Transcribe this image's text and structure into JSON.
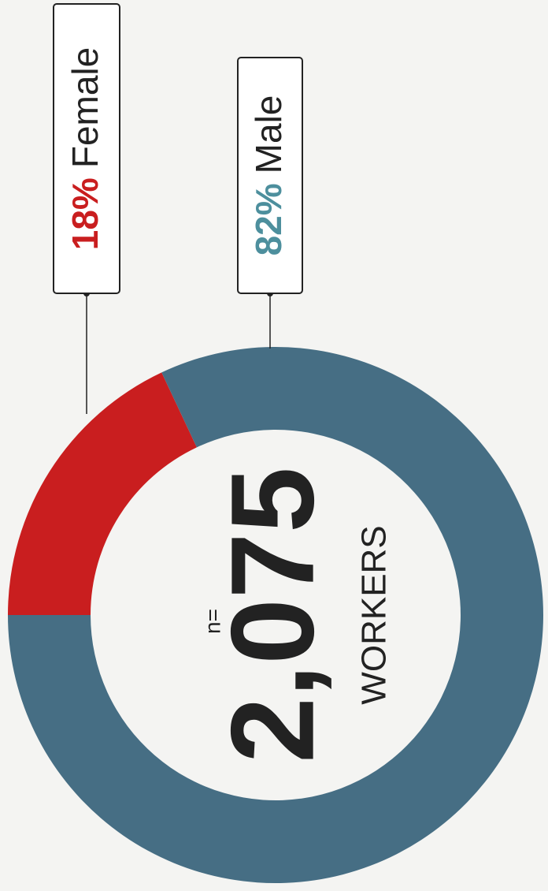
{
  "chart_data": {
    "type": "pie",
    "donut": true,
    "categories": [
      "Female",
      "Male"
    ],
    "values": [
      18,
      82
    ],
    "value_labels": [
      "18%",
      "82%"
    ],
    "colors": [
      "#c91e1f",
      "#466e84"
    ],
    "label_colors": [
      "#c91e1f",
      "#4d8f9d"
    ],
    "center_prefix": "n=",
    "total": {
      "value": 2075,
      "label": "2,075"
    },
    "center_caption": "WORKERS"
  }
}
